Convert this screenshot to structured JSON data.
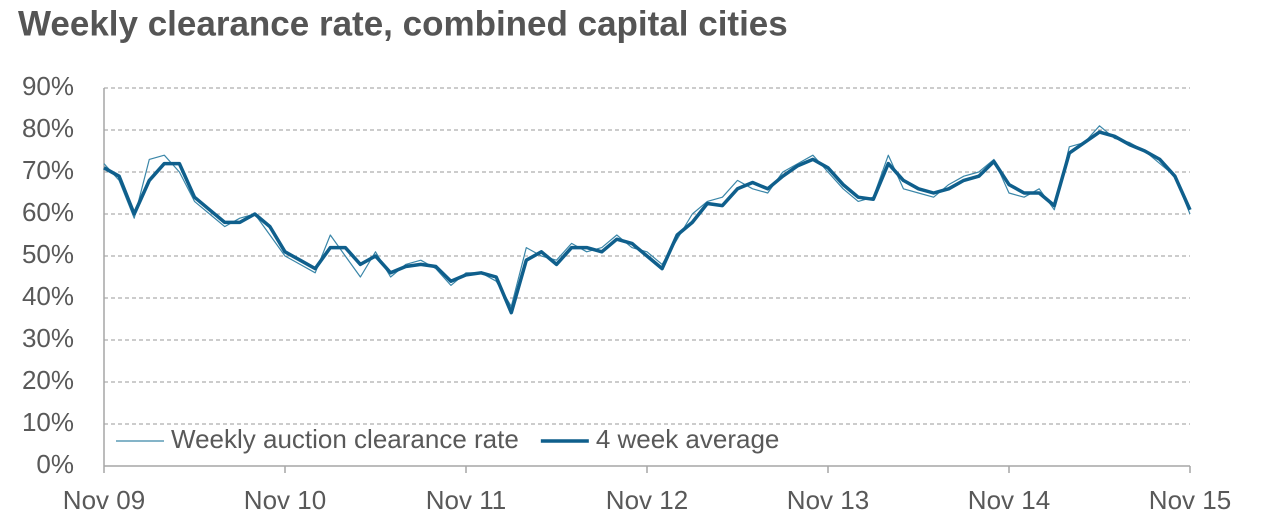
{
  "chart_data": {
    "type": "line",
    "title": "Weekly clearance rate, combined capital cities",
    "categories": [
      "Nov 09",
      null,
      null,
      null,
      null,
      null,
      null,
      null,
      null,
      null,
      null,
      null,
      "Nov 10",
      null,
      null,
      null,
      null,
      null,
      null,
      null,
      null,
      null,
      null,
      null,
      "Nov 11",
      null,
      null,
      null,
      null,
      null,
      null,
      null,
      null,
      null,
      null,
      null,
      "Nov 12",
      null,
      null,
      null,
      null,
      null,
      null,
      null,
      null,
      null,
      null,
      null,
      "Nov 13",
      null,
      null,
      null,
      null,
      null,
      null,
      null,
      null,
      null,
      null,
      null,
      "Nov 14",
      null,
      null,
      null,
      null,
      null,
      null,
      null,
      null,
      null,
      null,
      null,
      "Nov 15"
    ],
    "series": [
      {
        "name": "Weekly auction clearance rate",
        "color": "#3a86a8",
        "values": [
          72,
          68,
          59,
          73,
          74,
          70,
          63,
          60,
          57,
          59,
          60,
          55,
          50,
          48,
          46,
          55,
          50,
          45,
          51,
          45,
          48,
          49,
          47,
          43,
          46,
          46,
          44,
          38,
          52,
          50,
          49,
          53,
          51,
          52,
          55,
          52,
          51,
          48,
          54,
          60,
          63,
          64,
          68,
          66,
          65,
          70,
          72,
          74,
          70,
          66,
          63,
          64,
          74,
          66,
          65,
          64,
          67,
          69,
          70,
          73,
          65,
          64,
          66,
          61,
          76,
          77,
          81,
          78,
          77,
          75,
          72,
          69,
          60
        ]
      },
      {
        "name": "4 week average",
        "color": "#0f5f8c",
        "values": [
          71,
          69,
          60,
          68,
          72,
          72,
          64,
          61,
          58,
          58,
          60,
          57,
          51,
          49,
          47,
          52,
          52,
          48,
          50,
          46,
          47.5,
          48,
          47.5,
          44,
          45.5,
          46,
          45,
          36.5,
          49,
          51,
          48,
          52,
          52,
          51,
          54,
          53,
          50,
          47,
          55,
          58,
          62.5,
          62,
          66,
          67.5,
          66,
          69,
          71.5,
          73,
          71,
          67,
          64,
          63.5,
          72,
          68,
          66,
          65,
          66,
          68,
          69,
          72.5,
          67,
          65,
          65,
          62,
          74.5,
          77,
          79.5,
          78.5,
          76.5,
          75,
          73,
          69,
          61
        ]
      }
    ],
    "ylim": [
      0,
      90
    ],
    "yticks": [
      {
        "value": 0,
        "label": "0%"
      },
      {
        "value": 10,
        "label": "10%"
      },
      {
        "value": 20,
        "label": "20%"
      },
      {
        "value": 30,
        "label": "30%"
      },
      {
        "value": 40,
        "label": "40%"
      },
      {
        "value": 50,
        "label": "50%"
      },
      {
        "value": 60,
        "label": "60%"
      },
      {
        "value": 70,
        "label": "70%"
      },
      {
        "value": 80,
        "label": "80%"
      },
      {
        "value": 90,
        "label": "90%"
      }
    ],
    "grid": true,
    "legend": "bottom-left"
  }
}
